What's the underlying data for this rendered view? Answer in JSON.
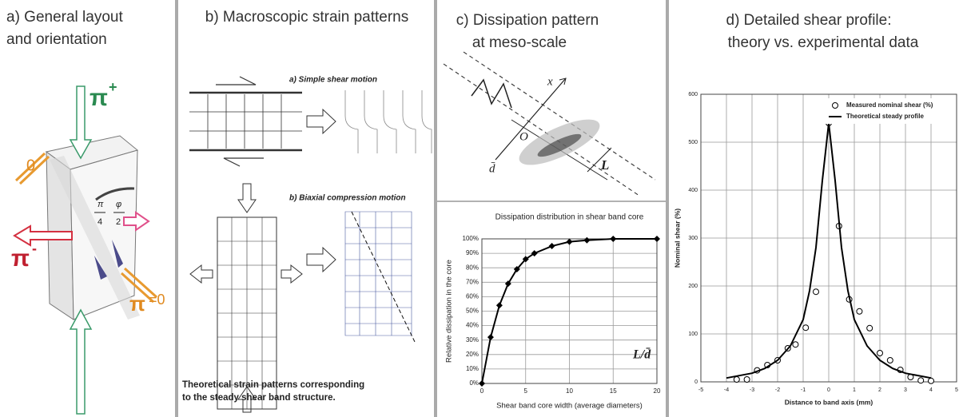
{
  "panels": {
    "a": {
      "title": [
        "a) General layout",
        "and orientation"
      ],
      "labels": [
        "π",
        "+",
        "π",
        "-",
        "π",
        "=0",
        "0",
        "π",
        "4",
        "φ",
        "2"
      ]
    },
    "b": {
      "title": "b) Macroscopic strain patterns",
      "labels": [
        "a) Simple shear motion",
        "b) Biaxial compression motion"
      ],
      "caption": [
        "Theoretical strain patterns corresponding",
        "to the steady shear band structure."
      ]
    },
    "c": {
      "title": [
        "c) Dissipation pattern",
        "at meso-scale"
      ],
      "labels": [
        "x",
        "O",
        "d̄",
        "L"
      ]
    },
    "d": {
      "title": [
        "d) Detailed shear profile:",
        "theory vs. experimental data"
      ]
    }
  },
  "chart_data": [
    {
      "type": "line",
      "title": "Dissipation distribution in shear band core",
      "xlabel": "Shear band core width (average diameters)",
      "ylabel": "Relative dissipation  in the core",
      "annotation": "L/d̄",
      "xlim": [
        0,
        20
      ],
      "xticks": [
        0,
        5,
        10,
        15,
        20
      ],
      "ylim": [
        0,
        100
      ],
      "yticks": [
        {
          "value": 0,
          "label": "0%"
        },
        {
          "value": 10,
          "label": "10%"
        },
        {
          "value": 20,
          "label": "20%"
        },
        {
          "value": 30,
          "label": "30%"
        },
        {
          "value": 40,
          "label": "40%"
        },
        {
          "value": 50,
          "label": "50%"
        },
        {
          "value": 60,
          "label": "60%"
        },
        {
          "value": 70,
          "label": "70%"
        },
        {
          "value": 80,
          "label": "80%"
        },
        {
          "value": 90,
          "label": "90%"
        },
        {
          "value": 100,
          "label": "100%"
        }
      ],
      "grid": true,
      "series": [
        {
          "x": [
            0,
            1,
            2,
            3,
            4,
            5,
            6,
            8,
            10,
            12,
            15,
            20
          ],
          "values": [
            0,
            32,
            54,
            69,
            79,
            86,
            90,
            95,
            98,
            99,
            100,
            100
          ],
          "color": "#000000",
          "marker": "diamond",
          "line": true
        }
      ]
    },
    {
      "type": "line",
      "xlabel": "Distance to band axis (mm)",
      "ylabel": "Nominal shear (%)",
      "xlim": [
        -5,
        5
      ],
      "xticks": [
        -5,
        -4,
        -3,
        -2,
        -1,
        0,
        1,
        2,
        3,
        4,
        5
      ],
      "ylim": [
        0,
        600
      ],
      "yticks": [
        0,
        100,
        200,
        300,
        400,
        500,
        600
      ],
      "grid": true,
      "legend": "upper right",
      "series": [
        {
          "name": "Measured nominal shear (%)",
          "x": [
            -3.6,
            -3.2,
            -2.8,
            -2.4,
            -2,
            -1.6,
            -1.3,
            -0.9,
            -0.5,
            0,
            0.4,
            0.8,
            1.2,
            1.6,
            2,
            2.4,
            2.8,
            3.2,
            3.6,
            4
          ],
          "values": [
            5,
            5,
            24,
            35,
            45,
            70,
            78,
            113,
            188,
            540,
            325,
            172,
            147,
            112,
            60,
            45,
            25,
            10,
            3,
            2
          ],
          "color": "#000000",
          "marker": "open-circle",
          "line": false
        },
        {
          "name": "Theoretical steady profile",
          "x": [
            -4,
            -3,
            -2.5,
            -2,
            -1.5,
            -1,
            -0.75,
            -0.5,
            -0.25,
            0,
            0.25,
            0.5,
            0.75,
            1,
            1.5,
            2,
            2.5,
            3,
            4
          ],
          "values": [
            8,
            18,
            28,
            45,
            75,
            130,
            190,
            280,
            420,
            540,
            420,
            280,
            190,
            130,
            75,
            45,
            28,
            18,
            8
          ],
          "color": "#000000",
          "marker": "none",
          "line": true
        }
      ]
    }
  ]
}
